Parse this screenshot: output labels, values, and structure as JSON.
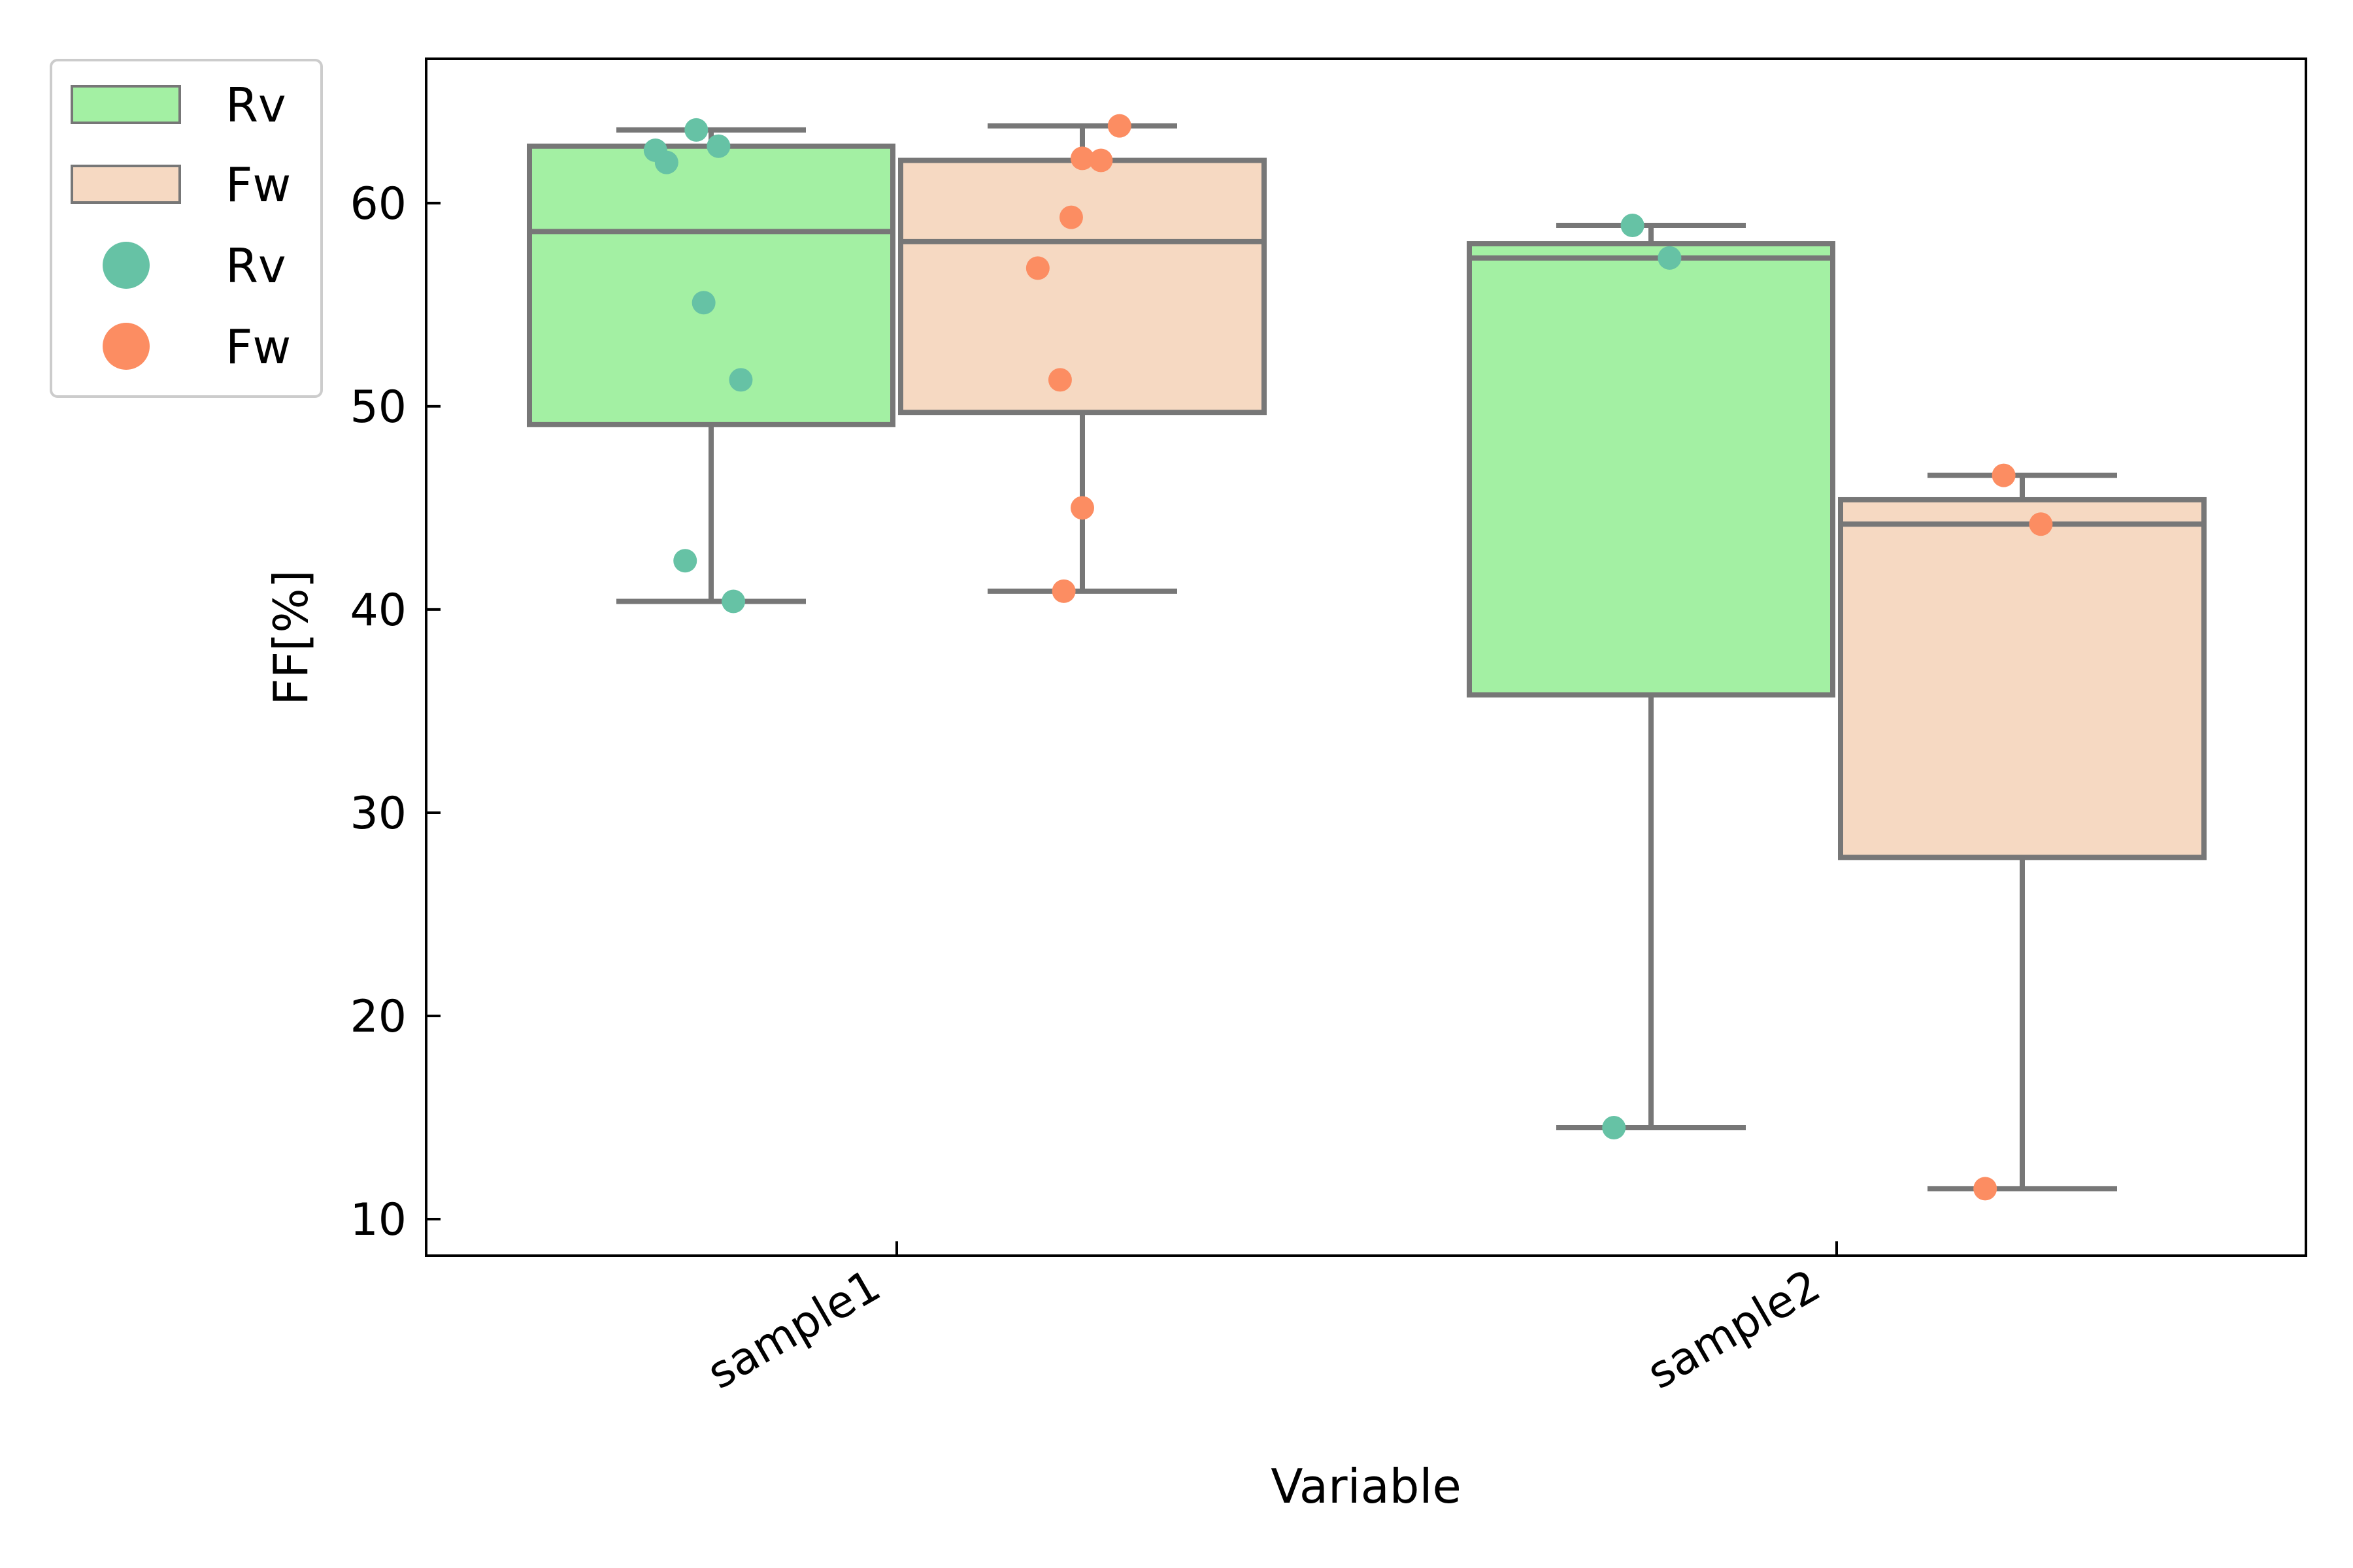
{
  "chart_data": {
    "type": "box",
    "xlabel": "Variable",
    "ylabel": "FF[%]",
    "ylim": [
      8.2,
      67.1
    ],
    "yticks": [
      10,
      20,
      30,
      40,
      50,
      60
    ],
    "categories": [
      "sample1",
      "sample2"
    ],
    "grid": false,
    "legend_position": "outside-top-left",
    "legend": [
      {
        "label": "Rv",
        "kind": "box",
        "color": "#a3f0a3"
      },
      {
        "label": "Fw",
        "kind": "box",
        "color": "#f6d9c2"
      },
      {
        "label": "Rv",
        "kind": "point",
        "color": "#66c2a5"
      },
      {
        "label": "Fw",
        "kind": "point",
        "color": "#fc8d62"
      }
    ],
    "edge_color": "#777777",
    "series": [
      {
        "name": "Rv",
        "box_color": "#a3f0a3",
        "point_color": "#66c2a5",
        "boxes": [
          {
            "category": "sample1",
            "whisker_low": 40.4,
            "q1": 49.1,
            "median": 58.6,
            "q3": 62.8,
            "whisker_high": 63.6
          },
          {
            "category": "sample2",
            "whisker_low": 14.5,
            "q1": 35.8,
            "median": 57.3,
            "q3": 58.0,
            "whisker_high": 58.9
          }
        ],
        "points": [
          {
            "category": "sample1",
            "values": [
              63.6,
              62.8,
              62.6,
              62.0,
              55.1,
              51.3,
              42.4,
              40.4
            ]
          },
          {
            "category": "sample2",
            "values": [
              58.9,
              57.3,
              14.5
            ]
          }
        ]
      },
      {
        "name": "Fw",
        "box_color": "#f6d9c2",
        "point_color": "#fc8d62",
        "boxes": [
          {
            "category": "sample1",
            "whisker_low": 40.9,
            "q1": 49.7,
            "median": 58.1,
            "q3": 62.1,
            "whisker_high": 63.8
          },
          {
            "category": "sample2",
            "whisker_low": 11.5,
            "q1": 27.8,
            "median": 44.2,
            "q3": 45.4,
            "whisker_high": 46.6
          }
        ],
        "points": [
          {
            "category": "sample1",
            "values": [
              63.8,
              62.2,
              62.1,
              59.3,
              56.8,
              51.3,
              45.0,
              40.9
            ]
          },
          {
            "category": "sample2",
            "values": [
              46.6,
              44.2,
              11.5
            ]
          }
        ]
      }
    ]
  }
}
